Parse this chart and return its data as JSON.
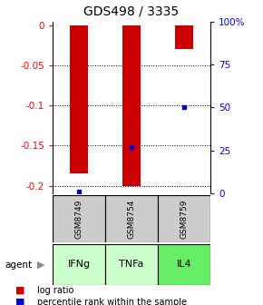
{
  "title": "GDS498 / 3335",
  "samples": [
    "GSM8749",
    "GSM8754",
    "GSM8759"
  ],
  "agents": [
    "IFNg",
    "TNFa",
    "IL4"
  ],
  "log_ratios": [
    -0.185,
    -0.2,
    -0.03
  ],
  "percentile_ranks": [
    1.0,
    27.0,
    50.0
  ],
  "ylim_left": [
    -0.21,
    0.005
  ],
  "left_ticks": [
    0,
    -0.05,
    -0.1,
    -0.15,
    -0.2
  ],
  "right_ticks": [
    100,
    75,
    50,
    25,
    0
  ],
  "bar_color": "#cc0000",
  "dot_color": "#0000cc",
  "agent_colors": [
    "#ccffcc",
    "#ccffcc",
    "#66ee66"
  ],
  "sample_bg": "#cccccc",
  "legend_bar_color": "#cc0000",
  "legend_dot_color": "#0000cc",
  "bar_width": 0.35
}
